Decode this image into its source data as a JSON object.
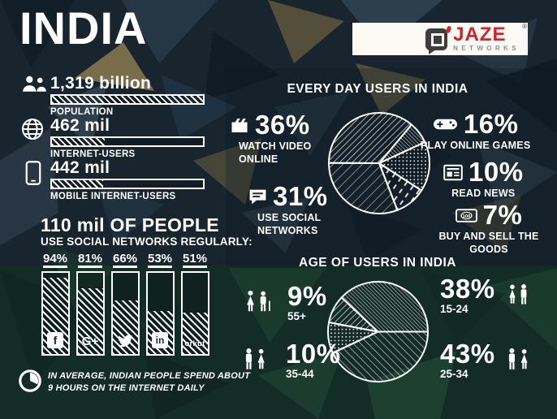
{
  "header": {
    "title": "INDIA"
  },
  "logo": {
    "brand": "JAZE",
    "sub": "NETWORKS",
    "registered": "®",
    "accent_red": "#d2232a"
  },
  "colors": {
    "bg_navy": "#18242e",
    "bg_green": "#142c26",
    "white": "#ffffff",
    "tan": "#8a7a50"
  },
  "stats": {
    "items": [
      {
        "icon": "population-icon",
        "value": "1,319 billion",
        "label": "POPULATION",
        "fill_pct": 100
      },
      {
        "icon": "internet-globe-icon",
        "value": "462 mil",
        "label": "INTERNET-USERS",
        "fill_pct": 35
      },
      {
        "icon": "mobile-phone-icon",
        "value": "442 mil",
        "label": "MOBILE INTERNET-USERS",
        "fill_pct": 34
      }
    ]
  },
  "social": {
    "title": "110 mil OF PEOPLE",
    "subtitle": "USE SOCIAL NETWORKS REGULARLY:",
    "bars": [
      {
        "label": "94%",
        "value": 94,
        "network": "facebook",
        "glyph": "f"
      },
      {
        "label": "81%",
        "value": 81,
        "network": "google-plus",
        "glyph": "G+"
      },
      {
        "label": "66%",
        "value": 66,
        "network": "twitter",
        "glyph": ""
      },
      {
        "label": "53%",
        "value": 53,
        "network": "linkedin",
        "glyph": "in"
      },
      {
        "label": "51%",
        "value": 51,
        "network": "orkut",
        "glyph": "orkut"
      }
    ]
  },
  "daily_note": {
    "text": "IN AVERAGE, INDIAN PEOPLE SPEND ABOUT\n9 HOURS ON THE INTERNET DAILY"
  },
  "everyday": {
    "title": "EVERY DAY USERS IN INDIA",
    "items_left": [
      {
        "pct": "36%",
        "label": "WATCH VIDEO\nONLINE",
        "icon": "video-icon"
      },
      {
        "pct": "31%",
        "label": "USE SOCIAL\nNETWORKS",
        "icon": "chat-icon"
      }
    ],
    "items_right": [
      {
        "pct": "16%",
        "label": "PLAY ONLINE GAMES",
        "icon": "gamepad-icon"
      },
      {
        "pct": "10%",
        "label": "READ NEWS",
        "icon": "news-icon"
      },
      {
        "pct": "7%",
        "label": "BUY AND SELL THE GOODS",
        "icon": "money-icon",
        "icon_text": "100"
      }
    ],
    "pie": {
      "start_deg": 40,
      "slices": [
        {
          "value": 7,
          "pattern": "p-hatch-c"
        },
        {
          "value": 16,
          "pattern": "p-dots"
        },
        {
          "value": 10,
          "pattern": "p-dash"
        },
        {
          "value": 31,
          "pattern": "p-hatch-b"
        },
        {
          "value": 36,
          "pattern": "p-hatch-a"
        }
      ]
    }
  },
  "age": {
    "title": "AGE OF USERS IN INDIA",
    "items_left": [
      {
        "pct": "9%",
        "label": "55+",
        "icon": "elderly-couple-icon"
      },
      {
        "pct": "10%",
        "label": "35-44",
        "icon": "adult-couple-icon"
      }
    ],
    "items_right": [
      {
        "pct": "38%",
        "label": "15-24",
        "icon": "young-couple-icon"
      },
      {
        "pct": "43%",
        "label": "25-34",
        "icon": "couple-icon"
      }
    ],
    "pie": {
      "start_deg": 90,
      "slices": [
        {
          "value": 43,
          "pattern": "p-hatch-d"
        },
        {
          "value": 10,
          "pattern": "p-dots"
        },
        {
          "value": 9,
          "pattern": "p-hatch-a"
        },
        {
          "value": 38,
          "pattern": "p-hatch-c"
        }
      ]
    }
  },
  "chart_data": [
    {
      "type": "bar",
      "title": "110 mil OF PEOPLE USE SOCIAL NETWORKS REGULARLY",
      "categories": [
        "Facebook",
        "Google+",
        "Twitter",
        "LinkedIn",
        "Orkut"
      ],
      "values": [
        94,
        81,
        66,
        53,
        51
      ],
      "unit": "%",
      "ylim": [
        0,
        100
      ],
      "grid": false
    },
    {
      "type": "pie",
      "title": "EVERY DAY USERS IN INDIA",
      "labels": [
        "WATCH VIDEO ONLINE",
        "USE SOCIAL NETWORKS",
        "PLAY ONLINE GAMES",
        "READ NEWS",
        "BUY AND SELL THE GOODS"
      ],
      "values": [
        36,
        31,
        16,
        10,
        7
      ],
      "unit": "%"
    },
    {
      "type": "pie",
      "title": "AGE OF USERS IN INDIA",
      "labels": [
        "15-24",
        "25-34",
        "35-44",
        "55+"
      ],
      "values": [
        38,
        43,
        10,
        9
      ],
      "unit": "%"
    },
    {
      "type": "bar",
      "title": "INDIA KEY STATS",
      "categories": [
        "POPULATION",
        "INTERNET-USERS",
        "MOBILE INTERNET-USERS"
      ],
      "values_text": [
        "1,319 billion",
        "462 mil",
        "442 mil"
      ]
    }
  ]
}
